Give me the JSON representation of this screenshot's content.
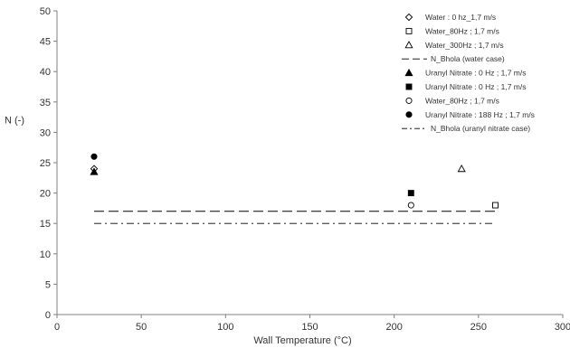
{
  "chart_data": {
    "type": "scatter",
    "title": "",
    "xlabel": "Wall Temperature (°C)",
    "ylabel": "N (-)",
    "xlim": [
      0,
      300
    ],
    "ylim": [
      0,
      50
    ],
    "x_ticks": [
      0,
      50,
      100,
      150,
      200,
      250,
      300
    ],
    "y_ticks": [
      0,
      5,
      10,
      15,
      20,
      25,
      30,
      35,
      40,
      45,
      50
    ],
    "grid": false,
    "legend_position": "top-right",
    "series": [
      {
        "name": "Water : 0 hz_1,7 m/s",
        "marker": "diamond-open",
        "points": [
          {
            "x": 22,
            "y": 24
          }
        ]
      },
      {
        "name": "Water_80Hz ; 1,7 m/s",
        "marker": "square-open",
        "points": [
          {
            "x": 260,
            "y": 18
          }
        ]
      },
      {
        "name": "Water_300Hz ; 1,7 m/s",
        "marker": "triangle-open",
        "points": [
          {
            "x": 240,
            "y": 24
          }
        ]
      },
      {
        "name": "N_Bhola (water case)",
        "line": "dashed",
        "points": [
          {
            "x": 22,
            "y": 17
          },
          {
            "x": 260,
            "y": 17
          }
        ]
      },
      {
        "name": "Uranyl Nitrate : 0 Hz ; 1,7 m/s",
        "marker": "triangle-filled",
        "points": [
          {
            "x": 22,
            "y": 23.5
          }
        ]
      },
      {
        "name": "Uranyl Nitrate : 0 Hz ; 1,7 m/s",
        "marker": "square-filled",
        "points": [
          {
            "x": 210,
            "y": 20
          }
        ]
      },
      {
        "name": "Water_80Hz ; 1,7 m/s",
        "marker": "circle-open",
        "points": [
          {
            "x": 210,
            "y": 18
          }
        ]
      },
      {
        "name": "Uranyl Nitrate : 188 Hz ; 1,7 m/s",
        "marker": "circle-filled",
        "points": [
          {
            "x": 22,
            "y": 26
          }
        ]
      },
      {
        "name": "N_Bhola (uranyl nitrate case)",
        "line": "dashdot",
        "points": [
          {
            "x": 22,
            "y": 15
          },
          {
            "x": 260,
            "y": 15
          }
        ]
      }
    ]
  },
  "colors": {
    "axis": "#808080",
    "marker": "#000000",
    "text": "#333333"
  }
}
